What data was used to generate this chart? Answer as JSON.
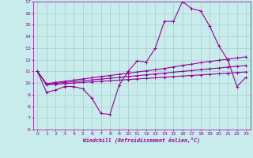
{
  "xlabel": "Windchill (Refroidissement éolien,°C)",
  "background_color": "#c8ecec",
  "grid_color": "#aacccc",
  "line_color": "#990099",
  "xlim": [
    -0.5,
    23.5
  ],
  "ylim": [
    6,
    17
  ],
  "yticks": [
    6,
    7,
    8,
    9,
    10,
    11,
    12,
    13,
    14,
    15,
    16,
    17
  ],
  "xticks": [
    0,
    1,
    2,
    3,
    4,
    5,
    6,
    7,
    8,
    9,
    10,
    11,
    12,
    13,
    14,
    15,
    16,
    17,
    18,
    19,
    20,
    21,
    22,
    23
  ],
  "series": [
    [
      11.0,
      9.2,
      9.4,
      9.7,
      9.7,
      9.5,
      8.7,
      7.4,
      7.3,
      9.8,
      11.0,
      11.9,
      11.8,
      13.0,
      15.3,
      15.3,
      17.0,
      16.4,
      16.2,
      14.9,
      13.2,
      12.0,
      9.7,
      10.5
    ],
    [
      11.0,
      9.85,
      9.9,
      9.95,
      10.0,
      10.05,
      10.1,
      10.15,
      10.2,
      10.25,
      10.3,
      10.35,
      10.4,
      10.45,
      10.5,
      10.55,
      10.6,
      10.65,
      10.7,
      10.75,
      10.8,
      10.85,
      10.9,
      10.95
    ],
    [
      11.0,
      9.9,
      9.97,
      10.05,
      10.12,
      10.19,
      10.27,
      10.34,
      10.41,
      10.49,
      10.56,
      10.63,
      10.71,
      10.78,
      10.85,
      10.93,
      11.0,
      11.07,
      11.15,
      11.22,
      11.29,
      11.37,
      11.44,
      11.51
    ],
    [
      11.0,
      9.95,
      10.05,
      10.15,
      10.25,
      10.35,
      10.45,
      10.55,
      10.65,
      10.75,
      10.85,
      10.95,
      11.05,
      11.15,
      11.25,
      11.38,
      11.52,
      11.62,
      11.75,
      11.85,
      11.95,
      12.05,
      12.15,
      12.25
    ]
  ]
}
